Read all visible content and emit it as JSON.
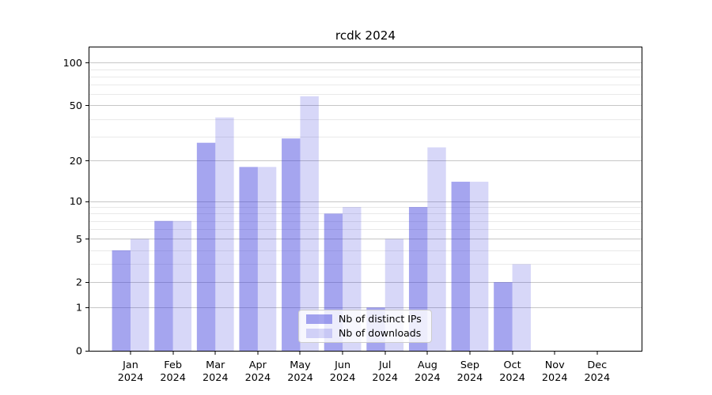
{
  "chart_data": {
    "type": "bar",
    "title": "rcdk 2024",
    "categories": [
      "Jan",
      "Feb",
      "Mar",
      "Apr",
      "May",
      "Jun",
      "Jul",
      "Aug",
      "Sep",
      "Oct",
      "Nov",
      "Dec"
    ],
    "year_label": "2024",
    "series": [
      {
        "name": "Nb of distinct IPs",
        "values": [
          4,
          7,
          27,
          18,
          29,
          8,
          1,
          9,
          14,
          2,
          0,
          0
        ],
        "color": "rgba(55,55,220,0.45)"
      },
      {
        "name": "Nb of downloads",
        "values": [
          5,
          7,
          41,
          18,
          58,
          9,
          5,
          25,
          14,
          3,
          0,
          0
        ],
        "color": "rgba(55,55,220,0.20)"
      }
    ],
    "yscale": "log1p",
    "ylim": [
      0,
      128
    ],
    "yticks": [
      0,
      1,
      2,
      5,
      10,
      20,
      50,
      100
    ],
    "yticks_minor": [
      3,
      4,
      6,
      7,
      8,
      9,
      30,
      40,
      60,
      70,
      80,
      90
    ],
    "grid": true,
    "legend_position": "lower-center",
    "colors": {
      "grid_major": "#c6c6c6",
      "grid_minor": "#e9e9e9",
      "axis": "#000000",
      "text": "#000000"
    }
  }
}
